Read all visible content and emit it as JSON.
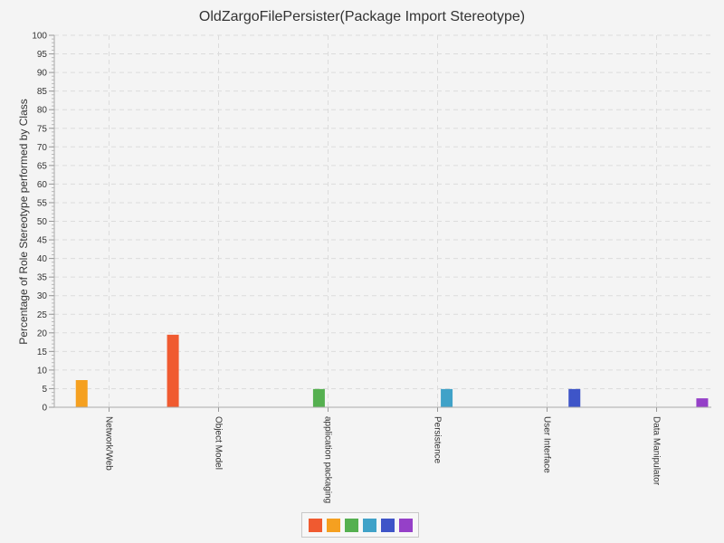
{
  "chart_data": {
    "type": "bar",
    "title": "OldZargoFilePersister(Package Import Stereotype)",
    "xlabel": "",
    "ylabel": "Percentage of Role Stereotype performed by Class",
    "ylim": [
      0,
      100
    ],
    "ytick_step": 5,
    "grid": true,
    "categories": [
      "Network/Web",
      "Object Model",
      "application packaging",
      "Persistence",
      "User Interface",
      "Data Manipulator"
    ],
    "series": [
      {
        "values": [
          0,
          19.5,
          0,
          0,
          0,
          0
        ],
        "color": "#f05a30"
      },
      {
        "values": [
          7.3,
          0,
          0,
          0,
          0,
          0
        ],
        "color": "#f5a020"
      },
      {
        "values": [
          0,
          0,
          4.9,
          0,
          0,
          0
        ],
        "color": "#55b050"
      },
      {
        "values": [
          0,
          0,
          0,
          4.9,
          0,
          0
        ],
        "color": "#40a2c8"
      },
      {
        "values": [
          0,
          0,
          0,
          0,
          4.9,
          0
        ],
        "color": "#3e55c8"
      },
      {
        "values": [
          0,
          0,
          0,
          0,
          0,
          2.4
        ],
        "color": "#9540c8"
      }
    ],
    "legend_position": "bottom"
  }
}
